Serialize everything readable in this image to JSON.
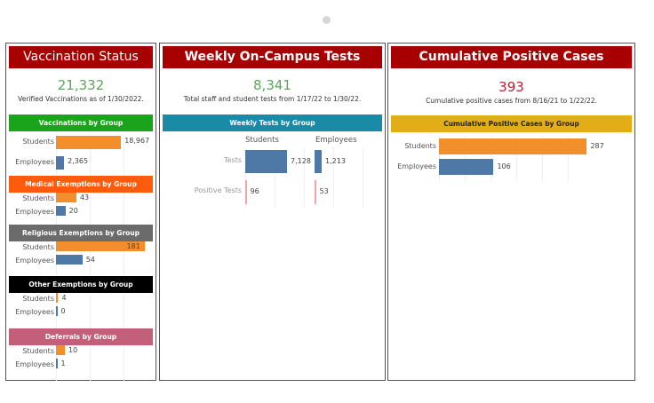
{
  "colors": {
    "students": "#f28e2b",
    "employees": "#4e79a7",
    "positive": "#f4a3a8",
    "title_red": "#a80000"
  },
  "vaccination": {
    "title": "Vaccination Status",
    "total": "21,332",
    "subtitle": "Verified Vaccinations as of 1/30/2022.",
    "sections": [
      {
        "title": "Vaccinations by Group",
        "color": "#1ba41b",
        "xmax": 28500,
        "rows": [
          {
            "label": "Students",
            "value": 18967,
            "text": "18,967"
          },
          {
            "label": "Employees",
            "value": 2365,
            "text": "2,365"
          }
        ]
      },
      {
        "title": "Medical Exemptions by Group",
        "color": "#ff5b0d",
        "xmax": 206,
        "rows": [
          {
            "label": "Students",
            "value": 43,
            "text": "43"
          },
          {
            "label": "Employees",
            "value": 20,
            "text": "20"
          }
        ]
      },
      {
        "title": "Religious Exemptions by Group",
        "color": "#6b6b6b",
        "xmax": 200,
        "rows": [
          {
            "label": "Students",
            "value": 181,
            "text": "181"
          },
          {
            "label": "Employees",
            "value": 54,
            "text": "54"
          }
        ]
      },
      {
        "title": "Other Exemptions by Group",
        "color": "#000000",
        "xmax": 180,
        "rows": [
          {
            "label": "Students",
            "value": 4,
            "text": "4"
          },
          {
            "label": "Employees",
            "value": 0,
            "text": "0"
          }
        ]
      },
      {
        "title": "Deferrals by Group",
        "color": "#c2607a",
        "xmax": 110,
        "rows": [
          {
            "label": "Students",
            "value": 10,
            "text": "10"
          },
          {
            "label": "Employees",
            "value": 1,
            "text": "1"
          }
        ]
      }
    ]
  },
  "tests": {
    "title": "Weekly On-Campus Tests",
    "total": "8,341",
    "subtitle": "Total staff and student tests from 1/17/22 to 1/30/22.",
    "section_title": "Weekly Tests by Group",
    "section_color": "#1b8aa6",
    "columns": [
      "Students",
      "Employees"
    ],
    "rows": [
      {
        "label": "Tests",
        "students": 7128,
        "students_text": "7,128",
        "employees": 1213,
        "employees_text": "1,213"
      },
      {
        "label": "Positive Tests",
        "students": 96,
        "students_text": "96",
        "employees": 53,
        "employees_text": "53"
      }
    ],
    "xmax": {
      "students": 10000,
      "employees": 10000
    }
  },
  "cases": {
    "title": "Cumulative Positive Cases",
    "total": "393",
    "subtitle": "Cumulative positive cases from 8/16/21 to 1/22/22.",
    "section_title": "Cumulative Positive Cases by Group",
    "section_color": "#e2ad17",
    "xmax": 300,
    "rows": [
      {
        "label": "Students",
        "value": 287,
        "text": "287"
      },
      {
        "label": "Employees",
        "value": 106,
        "text": "106"
      }
    ]
  }
}
